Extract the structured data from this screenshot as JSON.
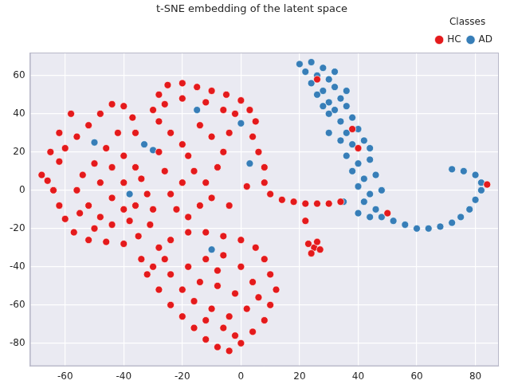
{
  "chart_data": {
    "type": "scatter",
    "title": "t-SNE embedding of the latent space",
    "legend_title": "Classes",
    "legend": "upper right",
    "grid": true,
    "xlim": [
      -72,
      88
    ],
    "xticks": [
      -60,
      -40,
      -20,
      0,
      20,
      40,
      60,
      80
    ],
    "ylim": [
      -92,
      72
    ],
    "yticks": [
      -80,
      -60,
      -40,
      -20,
      0,
      20,
      40,
      60
    ],
    "series": [
      {
        "name": "HC",
        "color": "#e41a1c",
        "marker": "circle",
        "values": [
          [
            -66,
            5
          ],
          [
            -68,
            8
          ],
          [
            -64,
            0
          ],
          [
            -62,
            -8
          ],
          [
            -60,
            -15
          ],
          [
            -57,
            -22
          ],
          [
            -52,
            -26
          ],
          [
            -46,
            -27
          ],
          [
            -40,
            -28
          ],
          [
            -35,
            -24
          ],
          [
            -31,
            -18
          ],
          [
            -30,
            -10
          ],
          [
            -32,
            -2
          ],
          [
            -34,
            6
          ],
          [
            -36,
            12
          ],
          [
            -40,
            18
          ],
          [
            -62,
            15
          ],
          [
            -60,
            22
          ],
          [
            -56,
            28
          ],
          [
            -52,
            34
          ],
          [
            -48,
            40
          ],
          [
            -44,
            45
          ],
          [
            -40,
            44
          ],
          [
            -37,
            38
          ],
          [
            -36,
            30
          ],
          [
            -42,
            30
          ],
          [
            -46,
            22
          ],
          [
            -50,
            14
          ],
          [
            -54,
            8
          ],
          [
            -56,
            0
          ],
          [
            -52,
            -8
          ],
          [
            -48,
            -14
          ],
          [
            -44,
            -18
          ],
          [
            -40,
            -10
          ],
          [
            -44,
            -4
          ],
          [
            -48,
            4
          ],
          [
            -44,
            12
          ],
          [
            -40,
            4
          ],
          [
            -36,
            -8
          ],
          [
            -55,
            -12
          ],
          [
            -62,
            30
          ],
          [
            -58,
            40
          ],
          [
            -65,
            20
          ],
          [
            -50,
            -20
          ],
          [
            -38,
            -16
          ],
          [
            -30,
            42
          ],
          [
            -28,
            50
          ],
          [
            -25,
            55
          ],
          [
            -20,
            56
          ],
          [
            -15,
            54
          ],
          [
            -10,
            52
          ],
          [
            -5,
            50
          ],
          [
            0,
            47
          ],
          [
            3,
            42
          ],
          [
            5,
            36
          ],
          [
            -26,
            45
          ],
          [
            -20,
            48
          ],
          [
            -12,
            46
          ],
          [
            -6,
            42
          ],
          [
            -2,
            40
          ],
          [
            -28,
            36
          ],
          [
            -24,
            30
          ],
          [
            -20,
            24
          ],
          [
            -18,
            18
          ],
          [
            -16,
            10
          ],
          [
            -20,
            4
          ],
          [
            -24,
            -2
          ],
          [
            -26,
            10
          ],
          [
            -28,
            20
          ],
          [
            -22,
            -10
          ],
          [
            -18,
            -14
          ],
          [
            -14,
            -8
          ],
          [
            -10,
            -4
          ],
          [
            -12,
            4
          ],
          [
            -8,
            12
          ],
          [
            -6,
            20
          ],
          [
            -10,
            28
          ],
          [
            -14,
            34
          ],
          [
            4,
            28
          ],
          [
            6,
            20
          ],
          [
            8,
            12
          ],
          [
            8,
            4
          ],
          [
            10,
            -2
          ],
          [
            14,
            -5
          ],
          [
            18,
            -6
          ],
          [
            22,
            -7
          ],
          [
            26,
            -7
          ],
          [
            30,
            -7
          ],
          [
            34,
            -6
          ],
          [
            -4,
            30
          ],
          [
            2,
            2
          ],
          [
            -4,
            -8
          ],
          [
            -28,
            -30
          ],
          [
            -24,
            -26
          ],
          [
            -18,
            -22
          ],
          [
            -12,
            -22
          ],
          [
            -6,
            -24
          ],
          [
            0,
            -26
          ],
          [
            5,
            -30
          ],
          [
            8,
            -36
          ],
          [
            10,
            -44
          ],
          [
            12,
            -52
          ],
          [
            10,
            -60
          ],
          [
            8,
            -68
          ],
          [
            4,
            -74
          ],
          [
            0,
            -80
          ],
          [
            -4,
            -84
          ],
          [
            -8,
            -82
          ],
          [
            -12,
            -78
          ],
          [
            -16,
            -72
          ],
          [
            -20,
            -66
          ],
          [
            -24,
            -60
          ],
          [
            -28,
            -52
          ],
          [
            -32,
            -44
          ],
          [
            -34,
            -36
          ],
          [
            -30,
            -40
          ],
          [
            -24,
            -44
          ],
          [
            -18,
            -40
          ],
          [
            -12,
            -36
          ],
          [
            -6,
            -34
          ],
          [
            0,
            -40
          ],
          [
            4,
            -48
          ],
          [
            -2,
            -54
          ],
          [
            -8,
            -50
          ],
          [
            -14,
            -48
          ],
          [
            -20,
            -52
          ],
          [
            -16,
            -58
          ],
          [
            -10,
            -62
          ],
          [
            -4,
            -66
          ],
          [
            2,
            -62
          ],
          [
            -6,
            -72
          ],
          [
            -12,
            -68
          ],
          [
            -2,
            -76
          ],
          [
            6,
            -56
          ],
          [
            -26,
            -36
          ],
          [
            -8,
            -42
          ],
          [
            23,
            -28
          ],
          [
            25,
            -30
          ],
          [
            27,
            -31
          ],
          [
            24,
            -33
          ],
          [
            26,
            -27
          ],
          [
            26,
            58
          ],
          [
            40,
            22
          ],
          [
            38,
            32
          ],
          [
            22,
            -16
          ],
          [
            50,
            -12
          ],
          [
            84,
            3
          ]
        ]
      },
      {
        "name": "AD",
        "color": "#377eb8",
        "marker": "circle",
        "values": [
          [
            20,
            66
          ],
          [
            24,
            67
          ],
          [
            28,
            64
          ],
          [
            22,
            62
          ],
          [
            26,
            60
          ],
          [
            30,
            58
          ],
          [
            24,
            56
          ],
          [
            28,
            52
          ],
          [
            32,
            54
          ],
          [
            34,
            48
          ],
          [
            30,
            46
          ],
          [
            26,
            50
          ],
          [
            32,
            42
          ],
          [
            36,
            44
          ],
          [
            38,
            38
          ],
          [
            34,
            36
          ],
          [
            30,
            40
          ],
          [
            36,
            30
          ],
          [
            40,
            32
          ],
          [
            34,
            26
          ],
          [
            38,
            24
          ],
          [
            42,
            26
          ],
          [
            36,
            18
          ],
          [
            40,
            14
          ],
          [
            44,
            16
          ],
          [
            38,
            10
          ],
          [
            42,
            6
          ],
          [
            46,
            8
          ],
          [
            40,
            2
          ],
          [
            44,
            -2
          ],
          [
            48,
            0
          ],
          [
            42,
            -6
          ],
          [
            46,
            -10
          ],
          [
            44,
            -14
          ],
          [
            40,
            -12
          ],
          [
            48,
            -14
          ],
          [
            52,
            -16
          ],
          [
            56,
            -18
          ],
          [
            60,
            -20
          ],
          [
            64,
            -20
          ],
          [
            68,
            -19
          ],
          [
            72,
            -17
          ],
          [
            75,
            -14
          ],
          [
            78,
            -10
          ],
          [
            80,
            -5
          ],
          [
            82,
            0
          ],
          [
            82,
            4
          ],
          [
            80,
            8
          ],
          [
            76,
            10
          ],
          [
            72,
            11
          ],
          [
            32,
            62
          ],
          [
            28,
            44
          ],
          [
            44,
            22
          ],
          [
            30,
            30
          ],
          [
            36,
            52
          ],
          [
            -50,
            25
          ],
          [
            -33,
            24
          ],
          [
            -30,
            21
          ],
          [
            -38,
            -2
          ],
          [
            -15,
            42
          ],
          [
            0,
            35
          ],
          [
            3,
            14
          ],
          [
            -10,
            -31
          ],
          [
            35,
            -6
          ]
        ]
      }
    ]
  }
}
